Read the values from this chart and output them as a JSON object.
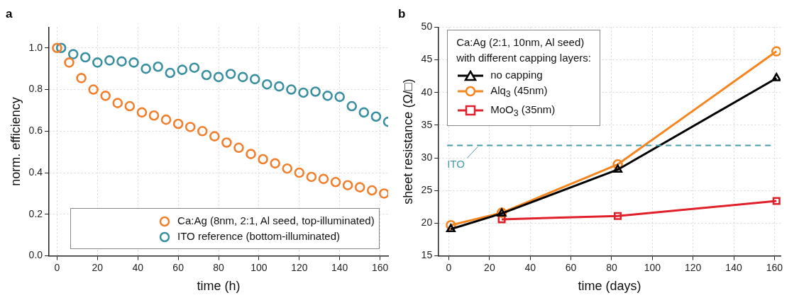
{
  "chart_data": [
    {
      "type": "scatter",
      "title": "a",
      "xlabel": "time (h)",
      "ylabel": "norm. efficiency",
      "xlim": [
        -4,
        164
      ],
      "xticks": [
        0,
        20,
        40,
        60,
        80,
        100,
        120,
        140,
        160
      ],
      "ylim": [
        0,
        1.1
      ],
      "yticks": [
        {
          "value": 0,
          "label": "0.0"
        },
        {
          "value": 0.2,
          "label": "0.2"
        },
        {
          "value": 0.4,
          "label": "0.4"
        },
        {
          "value": 0.6,
          "label": "0.6"
        },
        {
          "value": 0.8,
          "label": "0.8"
        },
        {
          "value": 1,
          "label": "1.0"
        }
      ],
      "grid": true,
      "legend": "bottom",
      "marker": "circle",
      "series": [
        {
          "name": "Ca:Ag (8nm, 2:1, Al seed, top-illuminated)",
          "color": "#f07f2e",
          "x": [
            0,
            6,
            12,
            18,
            24,
            30,
            36,
            42,
            48,
            54,
            60,
            66,
            72,
            78,
            84,
            90,
            96,
            102,
            108,
            114,
            120,
            126,
            132,
            138,
            144,
            150,
            156,
            162
          ],
          "values": [
            1.0,
            0.93,
            0.855,
            0.8,
            0.77,
            0.735,
            0.72,
            0.69,
            0.675,
            0.655,
            0.635,
            0.62,
            0.6,
            0.575,
            0.545,
            0.52,
            0.49,
            0.465,
            0.445,
            0.42,
            0.4,
            0.38,
            0.37,
            0.355,
            0.34,
            0.33,
            0.315,
            0.3
          ]
        },
        {
          "name": "ITO reference (bottom-illuminated)",
          "color": "#3a8fa0",
          "x": [
            2,
            8,
            14,
            20,
            26,
            32,
            38,
            44,
            50,
            56,
            62,
            68,
            74,
            80,
            86,
            92,
            98,
            104,
            110,
            116,
            122,
            128,
            134,
            140,
            146,
            152,
            158,
            164
          ],
          "values": [
            1.0,
            0.97,
            0.955,
            0.93,
            0.94,
            0.935,
            0.93,
            0.9,
            0.91,
            0.88,
            0.895,
            0.905,
            0.87,
            0.86,
            0.875,
            0.86,
            0.85,
            0.825,
            0.815,
            0.8,
            0.785,
            0.79,
            0.77,
            0.765,
            0.72,
            0.69,
            0.67,
            0.645
          ]
        }
      ]
    },
    {
      "type": "line",
      "title": "b",
      "xlabel": "time (days)",
      "ylabel": "sheet resistance (Ω/□)",
      "xlim": [
        -5,
        163
      ],
      "xticks": [
        0,
        20,
        40,
        60,
        80,
        100,
        120,
        140,
        160
      ],
      "ylim": [
        15,
        50
      ],
      "yticks": [
        15,
        20,
        25,
        30,
        35,
        40,
        45,
        50
      ],
      "grid": true,
      "legend": "top left",
      "legend_title": "Ca:Ag (2:1, 10nm, Al seed)\nwith different capping layers:",
      "x": [
        1,
        26,
        83,
        161
      ],
      "series": [
        {
          "name": "no capping",
          "color": "#000000",
          "marker": "triangle",
          "values": [
            19.1,
            21.5,
            28.2,
            42.2
          ]
        },
        {
          "name": "Alq$_{3}$ (45nm)",
          "color": "#f5861f",
          "marker": "circle",
          "values": [
            19.7,
            21.6,
            29.0,
            46.3
          ]
        },
        {
          "name": "MoO$_{3}$ (35nm)",
          "color": "#e0202a",
          "marker": "square",
          "values": [
            null,
            20.6,
            21.1,
            23.4
          ]
        }
      ],
      "ref_lines": [
        {
          "axis": "y",
          "value": 31.9,
          "label": "ITO",
          "color": "#4a9ba8",
          "line_style": "dashed"
        }
      ]
    }
  ]
}
